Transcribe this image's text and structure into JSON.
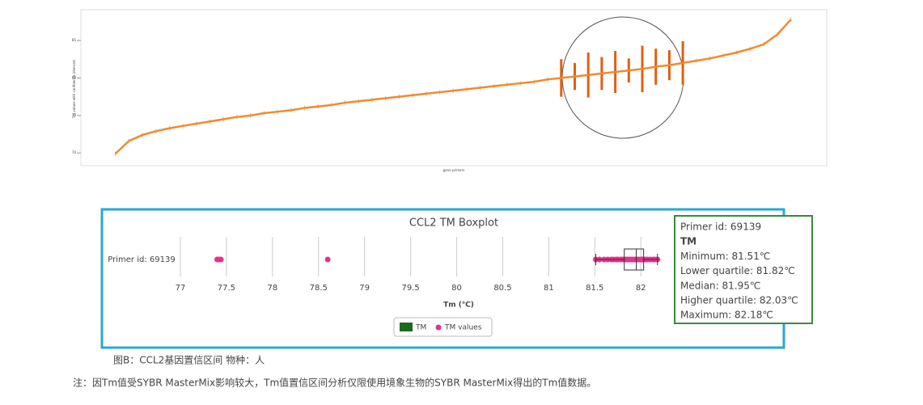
{
  "chart_data": [
    {
      "type": "line",
      "x_label": "gene primers",
      "y_label": "Tm values with confidence intervals",
      "x": [
        0,
        2,
        4,
        6,
        8,
        10,
        12,
        14,
        16,
        18,
        20,
        22,
        24,
        26,
        28,
        30,
        32,
        34,
        36,
        38,
        40,
        42,
        44,
        46,
        48,
        50,
        52,
        54,
        56,
        58,
        60,
        62,
        64,
        66,
        68,
        70,
        72,
        74,
        76,
        78,
        80,
        82,
        84,
        86,
        88,
        90,
        92,
        94,
        96,
        98,
        100
      ],
      "values": [
        69.9,
        71.6,
        72.4,
        72.9,
        73.3,
        73.6,
        73.9,
        74.2,
        74.5,
        74.8,
        75.0,
        75.3,
        75.5,
        75.7,
        76.0,
        76.2,
        76.4,
        76.7,
        76.9,
        77.1,
        77.3,
        77.5,
        77.7,
        77.9,
        78.1,
        78.3,
        78.5,
        78.7,
        78.9,
        79.1,
        79.3,
        79.5,
        79.8,
        80.0,
        80.2,
        80.4,
        80.6,
        80.8,
        81.0,
        81.2,
        81.5,
        81.7,
        82.0,
        82.3,
        82.6,
        83.0,
        83.4,
        83.9,
        84.5,
        85.8,
        87.8
      ],
      "errors": [
        0.3,
        0.3,
        0.3,
        0.3,
        0.3,
        0.3,
        0.3,
        0.3,
        0.3,
        0.3,
        0.3,
        0.3,
        0.3,
        0.3,
        0.3,
        0.3,
        0.3,
        0.3,
        0.3,
        0.3,
        0.3,
        0.3,
        0.3,
        0.3,
        0.3,
        0.3,
        0.3,
        0.3,
        0.3,
        0.3,
        0.3,
        0.3,
        0.3,
        2.5,
        1.8,
        3.0,
        2.2,
        2.8,
        1.6,
        3.1,
        2.4,
        2.0,
        2.9,
        0.3,
        0.3,
        0.3,
        0.3,
        0.3,
        0.3,
        0.3,
        0.3
      ],
      "color": "#f08a30",
      "xlim": [
        -5.1,
        105.3
      ],
      "ylim": [
        68.3,
        89.1
      ],
      "yticks": [
        70,
        75,
        80,
        85
      ]
    },
    {
      "type": "boxplot",
      "title": "CCL2 TM Boxplot",
      "x_label": "Tm (℃)",
      "categories": [
        "Primer id: 69139"
      ],
      "xlim": [
        76.93,
        82.2
      ],
      "xticks": [
        77,
        77.5,
        78,
        78.5,
        79,
        79.5,
        80,
        80.5,
        81,
        81.5,
        82
      ],
      "grid": true,
      "series": [
        {
          "name": "TM",
          "color": "#1a6b1a",
          "min": 81.51,
          "q1": 81.82,
          "median": 81.95,
          "q3": 82.03,
          "max": 82.18
        },
        {
          "name": "TM values",
          "color": "#e8308f",
          "values": [
            77.4,
            77.42,
            77.44,
            78.6,
            81.51,
            81.55,
            81.6,
            81.64,
            81.68,
            81.7,
            81.73,
            81.75,
            81.78,
            81.8,
            81.82,
            81.84,
            81.86,
            81.88,
            81.9,
            81.92,
            81.94,
            81.95,
            81.96,
            81.98,
            82.0,
            82.01,
            82.02,
            82.03,
            82.05,
            82.07,
            82.1,
            82.13,
            82.15,
            82.18
          ]
        }
      ],
      "tooltip": [
        "Primer id: 69139",
        "TM",
        "Minimum: 81.51℃",
        "Lower quartile: 81.82℃",
        "Median: 81.95℃",
        "Higher quartile: 82.03℃",
        "Maximum: 82.18℃"
      ]
    }
  ],
  "caption": "图B：CCL2基因置信区间 物种：人",
  "note": "注：因Tm值受SYBR MasterMix影响较大，Tm值置信区间分析仅限使用境象生物的SYBR MasterMix得出的Tm值数据。"
}
